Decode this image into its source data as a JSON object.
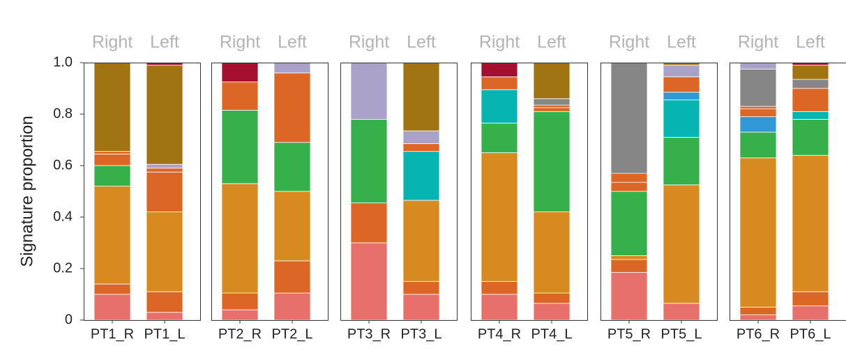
{
  "chart_data": {
    "type": "bar",
    "stacked": true,
    "ylabel": "Signature proportion",
    "ylim": [
      0,
      1.0
    ],
    "yticks": [
      "0",
      "0.2",
      "0.4",
      "0.6",
      "0.8",
      "1.0"
    ],
    "ytick_values": [
      0,
      0.2,
      0.4,
      0.6,
      0.8,
      1.0
    ],
    "grid": false,
    "legend": "none",
    "segment_order": [
      "salmon",
      "dark-orange-low",
      "gold-orange",
      "green",
      "teal",
      "blue",
      "orange",
      "lavender",
      "gray",
      "olive-brown",
      "crimson"
    ],
    "colors": {
      "salmon": "#e8706a",
      "dark-orange-low": "#dc6626",
      "gold-orange": "#d68a1f",
      "green": "#35b04a",
      "teal": "#06b4b2",
      "blue": "#3399d6",
      "orange": "#dc6626",
      "lavender": "#aaa1c8",
      "gray": "#868686",
      "olive-brown": "#a07313",
      "crimson": "#a50f30"
    },
    "panels": [
      {
        "side_labels": [
          "Right",
          "Left"
        ],
        "bars": [
          {
            "label": "PT1_R",
            "segments": [
              [
                "salmon",
                0.1
              ],
              [
                "dark-orange-low",
                0.04
              ],
              [
                "gold-orange",
                0.38
              ],
              [
                "green",
                0.08
              ],
              [
                "orange",
                0.045
              ],
              [
                "orange",
                0.01
              ],
              [
                "olive-brown",
                0.345
              ]
            ]
          },
          {
            "label": "PT1_L",
            "segments": [
              [
                "salmon",
                0.03
              ],
              [
                "dark-orange-low",
                0.08
              ],
              [
                "gold-orange",
                0.31
              ],
              [
                "orange",
                0.155
              ],
              [
                "orange",
                0.015
              ],
              [
                "lavender",
                0.015
              ],
              [
                "olive-brown",
                0.385
              ],
              [
                "crimson",
                0.01
              ]
            ]
          }
        ]
      },
      {
        "side_labels": [
          "Right",
          "Left"
        ],
        "bars": [
          {
            "label": "PT2_R",
            "segments": [
              [
                "salmon",
                0.04
              ],
              [
                "dark-orange-low",
                0.065
              ],
              [
                "gold-orange",
                0.425
              ],
              [
                "green",
                0.285
              ],
              [
                "orange",
                0.11
              ],
              [
                "crimson",
                0.075
              ]
            ]
          },
          {
            "label": "PT2_L",
            "segments": [
              [
                "salmon",
                0.105
              ],
              [
                "dark-orange-low",
                0.125
              ],
              [
                "gold-orange",
                0.27
              ],
              [
                "green",
                0.19
              ],
              [
                "orange",
                0.27
              ],
              [
                "lavender",
                0.04
              ]
            ]
          }
        ]
      },
      {
        "side_labels": [
          "Right",
          "Left"
        ],
        "bars": [
          {
            "label": "PT3_R",
            "segments": [
              [
                "salmon",
                0.3
              ],
              [
                "dark-orange-low",
                0.155
              ],
              [
                "green",
                0.325
              ],
              [
                "lavender",
                0.22
              ]
            ]
          },
          {
            "label": "PT3_L",
            "segments": [
              [
                "salmon",
                0.1
              ],
              [
                "dark-orange-low",
                0.05
              ],
              [
                "gold-orange",
                0.315
              ],
              [
                "teal",
                0.19
              ],
              [
                "orange",
                0.03
              ],
              [
                "lavender",
                0.05
              ],
              [
                "olive-brown",
                0.265
              ]
            ]
          }
        ]
      },
      {
        "side_labels": [
          "Right",
          "Left"
        ],
        "bars": [
          {
            "label": "PT4_R",
            "segments": [
              [
                "salmon",
                0.1
              ],
              [
                "dark-orange-low",
                0.05
              ],
              [
                "gold-orange",
                0.5
              ],
              [
                "green",
                0.115
              ],
              [
                "teal",
                0.13
              ],
              [
                "orange",
                0.05
              ],
              [
                "crimson",
                0.055
              ]
            ]
          },
          {
            "label": "PT4_L",
            "segments": [
              [
                "salmon",
                0.065
              ],
              [
                "dark-orange-low",
                0.04
              ],
              [
                "gold-orange",
                0.315
              ],
              [
                "green",
                0.39
              ],
              [
                "orange",
                0.015
              ],
              [
                "orange",
                0.01
              ],
              [
                "gray",
                0.025
              ],
              [
                "olive-brown",
                0.14
              ]
            ]
          }
        ]
      },
      {
        "side_labels": [
          "Right",
          "Left"
        ],
        "bars": [
          {
            "label": "PT5_R",
            "segments": [
              [
                "salmon",
                0.185
              ],
              [
                "dark-orange-low",
                0.05
              ],
              [
                "gold-orange",
                0.015
              ],
              [
                "green",
                0.25
              ],
              [
                "orange",
                0.035
              ],
              [
                "orange",
                0.035
              ],
              [
                "gray",
                0.43
              ]
            ]
          },
          {
            "label": "PT5_L",
            "segments": [
              [
                "salmon",
                0.065
              ],
              [
                "gold-orange",
                0.46
              ],
              [
                "green",
                0.185
              ],
              [
                "teal",
                0.145
              ],
              [
                "blue",
                0.03
              ],
              [
                "orange",
                0.06
              ],
              [
                "lavender",
                0.045
              ],
              [
                "olive-brown",
                0.01
              ]
            ]
          }
        ]
      },
      {
        "side_labels": [
          "Right",
          "Left"
        ],
        "bars": [
          {
            "label": "PT6_R",
            "segments": [
              [
                "salmon",
                0.02
              ],
              [
                "dark-orange-low",
                0.03
              ],
              [
                "gold-orange",
                0.58
              ],
              [
                "green",
                0.1
              ],
              [
                "blue",
                0.06
              ],
              [
                "orange",
                0.03
              ],
              [
                "orange",
                0.01
              ],
              [
                "gray",
                0.145
              ],
              [
                "lavender",
                0.025
              ]
            ]
          },
          {
            "label": "PT6_L",
            "segments": [
              [
                "salmon",
                0.055
              ],
              [
                "dark-orange-low",
                0.055
              ],
              [
                "gold-orange",
                0.53
              ],
              [
                "green",
                0.14
              ],
              [
                "teal",
                0.03
              ],
              [
                "orange",
                0.09
              ],
              [
                "gray",
                0.035
              ],
              [
                "olive-brown",
                0.055
              ],
              [
                "crimson",
                0.01
              ]
            ]
          }
        ]
      }
    ]
  }
}
